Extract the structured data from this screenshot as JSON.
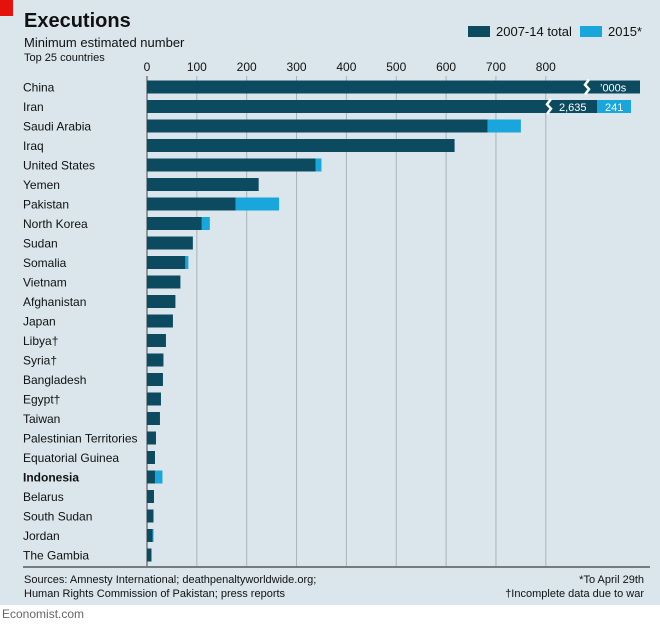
{
  "title": "Executions",
  "subtitle": "Minimum estimated number",
  "note": "Top 25 countries",
  "legend": {
    "items": [
      {
        "label": "2007-14 total",
        "color": "#0c4a60"
      },
      {
        "label": "2015*",
        "color": "#18a6dc"
      }
    ]
  },
  "chart_data": {
    "type": "bar",
    "orientation": "horizontal",
    "stacked": true,
    "title": "Executions",
    "subtitle": "Minimum estimated number",
    "xlim": [
      0,
      880
    ],
    "xticks": [
      0,
      100,
      200,
      300,
      400,
      500,
      600,
      700,
      800
    ],
    "categories": [
      "China",
      "Iran",
      "Saudi Arabia",
      "Iraq",
      "United States",
      "Yemen",
      "Pakistan",
      "North Korea",
      "Sudan",
      "Somalia",
      "Vietnam",
      "Afghanistan",
      "Japan",
      "Libya†",
      "Syria†",
      "Bangladesh",
      "Egypt†",
      "Taiwan",
      "Palestinian Territories",
      "Equatorial Guinea",
      "Indonesia",
      "Belarus",
      "South Sudan",
      "Jordan",
      "The Gambia"
    ],
    "highlight": "Indonesia",
    "series": [
      {
        "name": "2007-14 total",
        "values": [
          null,
          null,
          683,
          617,
          338,
          224,
          178,
          110,
          92,
          77,
          67,
          57,
          52,
          38,
          33,
          32,
          28,
          26,
          18,
          16,
          16,
          14,
          13,
          11,
          9
        ]
      },
      {
        "name": "2015*",
        "values": [
          null,
          null,
          67,
          0,
          12,
          0,
          87,
          16,
          0,
          6,
          0,
          0,
          0,
          0,
          0,
          0,
          0,
          0,
          0,
          0,
          15,
          0,
          0,
          2,
          0
        ]
      }
    ],
    "annotations": [
      {
        "category": "China",
        "text": "’000s"
      },
      {
        "category": "Iran",
        "values": [
          "2,635",
          "241"
        ]
      }
    ],
    "colors": {
      "dark": "#0c4a60",
      "light": "#18a6dc",
      "grid": "#a9b3b8",
      "background": "#dae6ec"
    }
  },
  "sources": [
    "Sources: Amnesty International; deathpenaltyworldwide.org;",
    "Human Rights Commission of Pakistan; press reports"
  ],
  "footnotes": [
    "*To April 29th",
    "†Incomplete data due to war"
  ],
  "brand": "Economist.com"
}
